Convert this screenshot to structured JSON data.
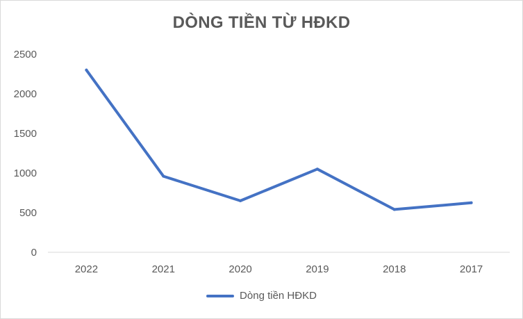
{
  "chart_data": {
    "type": "line",
    "title": "DÒNG TIỀN TỪ HĐKD",
    "categories": [
      "2022",
      "2021",
      "2020",
      "2019",
      "2018",
      "2017"
    ],
    "series": [
      {
        "name": "Dòng tiền HĐKD",
        "values": [
          2300,
          960,
          650,
          1050,
          540,
          625
        ],
        "color": "#4472c4"
      }
    ],
    "xlabel": "",
    "ylabel": "",
    "ylim": [
      0,
      2500
    ],
    "yticks": [
      "0",
      "500",
      "1000",
      "1500",
      "2000",
      "2500"
    ],
    "grid": false,
    "legend_position": "bottom"
  }
}
